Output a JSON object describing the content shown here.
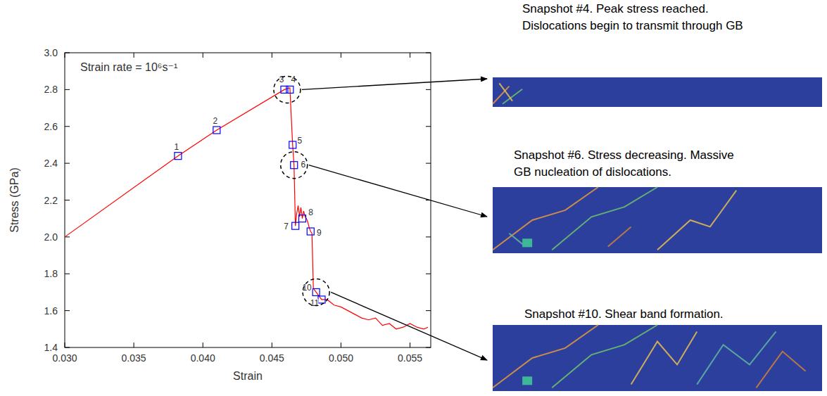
{
  "chart_data": {
    "type": "line",
    "title": "Strain rate = 10⁶s⁻¹",
    "x_label": "Strain",
    "y_label": "Stress (GPa)",
    "xlim": [
      0.03,
      0.0565
    ],
    "ylim": [
      1.4,
      3.0
    ],
    "xticks": [
      {
        "value": 0.03,
        "label": "0.030"
      },
      {
        "value": 0.035,
        "label": "0.035"
      },
      {
        "value": 0.04,
        "label": "0.040"
      },
      {
        "value": 0.045,
        "label": "0.045"
      },
      {
        "value": 0.05,
        "label": "0.050"
      },
      {
        "value": 0.055,
        "label": "0.055"
      }
    ],
    "yticks": [
      1.4,
      1.6,
      1.8,
      {
        "value": 2.0,
        "label": "2.0"
      },
      2.2,
      2.4,
      2.6,
      2.8,
      {
        "value": 3.0,
        "label": "3.0"
      }
    ],
    "grid": false,
    "series": [
      {
        "type": "line",
        "color": "#ff0000",
        "line_style": "solid",
        "x": [
          0.03,
          0.0382,
          0.041,
          0.0459,
          0.0463,
          0.0465,
          0.0466,
          0.0467,
          0.0468,
          0.0469,
          0.047,
          0.0471,
          0.0472,
          0.0473,
          0.0474,
          0.0475,
          0.0476,
          0.0477,
          0.0478,
          0.0479,
          0.048,
          0.0482,
          0.0484,
          0.0486,
          0.049,
          0.0495,
          0.05,
          0.0505,
          0.051,
          0.0515,
          0.052,
          0.0525,
          0.053,
          0.0535,
          0.054,
          0.0545,
          0.055,
          0.0555,
          0.056,
          0.0563
        ],
        "values": [
          2.0,
          2.44,
          2.58,
          2.8,
          2.81,
          2.5,
          2.39,
          2.06,
          2.13,
          2.17,
          2.11,
          2.16,
          2.1,
          2.14,
          2.11,
          2.1,
          2.08,
          2.05,
          2.03,
          2.02,
          1.72,
          1.7,
          1.68,
          1.66,
          1.66,
          1.63,
          1.62,
          1.6,
          1.58,
          1.56,
          1.55,
          1.56,
          1.52,
          1.53,
          1.5,
          1.51,
          1.53,
          1.51,
          1.5,
          1.51
        ]
      },
      {
        "type": "scatter",
        "color": "#0000ff",
        "marker": "square",
        "x": [
          0.0382,
          0.041,
          0.0459,
          0.0463,
          0.0465,
          0.0466,
          0.0467,
          0.0472,
          0.0478,
          0.0482,
          0.0486
        ],
        "values": [
          2.44,
          2.58,
          2.8,
          2.8,
          2.5,
          2.39,
          2.06,
          2.1,
          2.03,
          1.7,
          1.66
        ],
        "labels": [
          "1",
          "2",
          "3",
          "4",
          "5",
          "6",
          "7",
          "8",
          "9",
          "10",
          "11"
        ]
      }
    ],
    "annotations": [
      {
        "lines": [
          "Snapshot #4. Peak stress reached.",
          "Dislocations begin to transmit through GB"
        ]
      },
      {
        "lines": [
          "Snapshot #6. Stress decreasing. Massive",
          "GB nucleation of dislocations."
        ]
      },
      {
        "lines": [
          "Snapshot #10. Shear band formation."
        ]
      }
    ]
  }
}
